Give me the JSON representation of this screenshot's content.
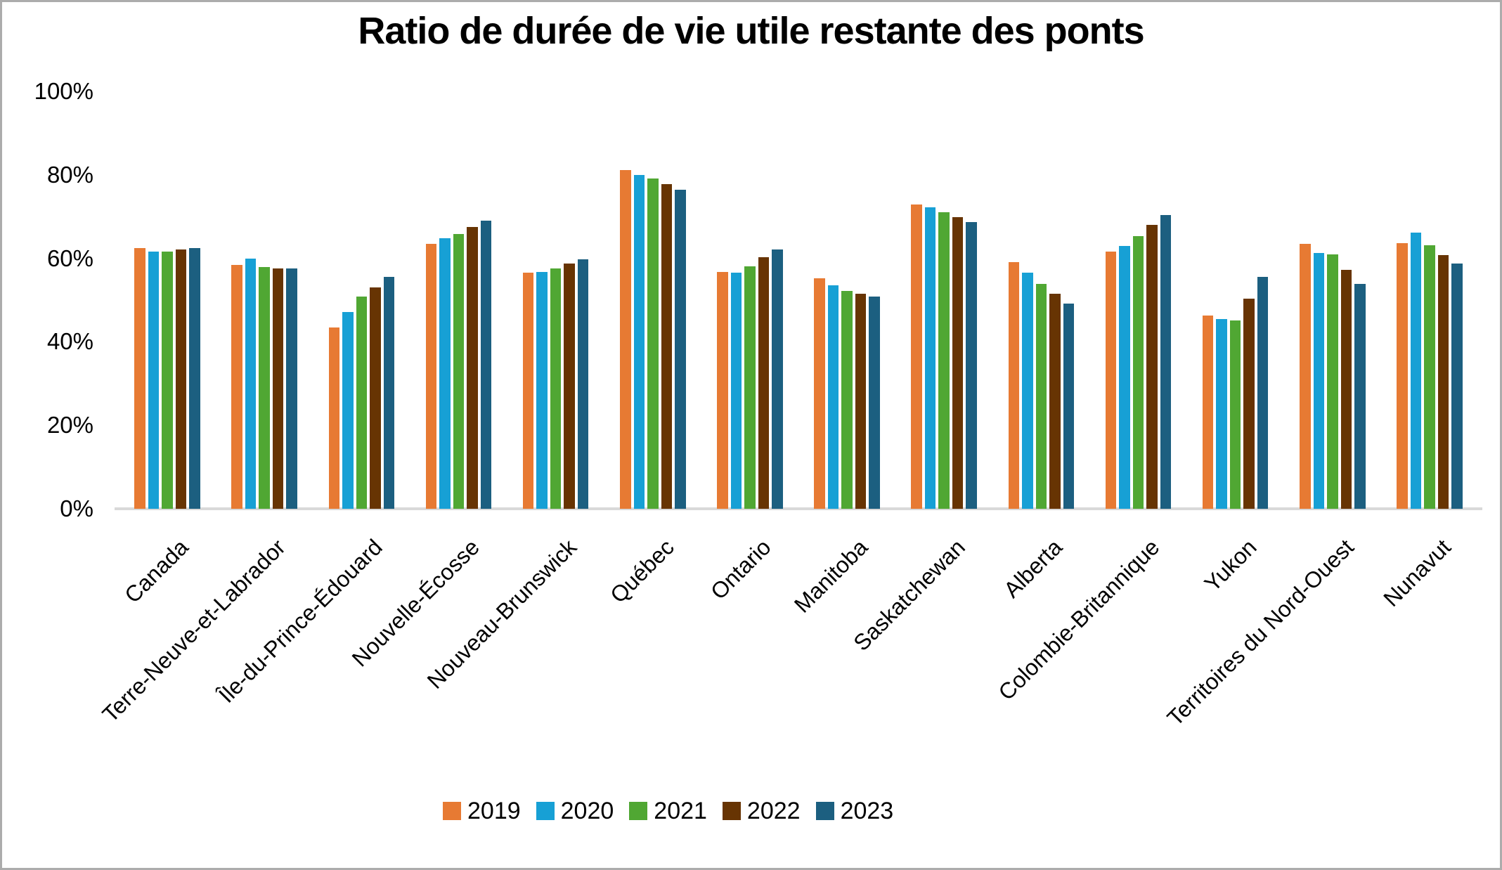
{
  "title": "Ratio de durée de vie utile restante des ponts",
  "colors": {
    "background": "#FFFFFF",
    "frame_border": "#ACACAC",
    "axis_line": "#D9D9D9",
    "text": "#000000"
  },
  "chart_data": {
    "type": "bar",
    "title": "Ratio de durée de vie utile restante des ponts",
    "xlabel": "",
    "ylabel": "",
    "grid": false,
    "legend_position": "bottom",
    "ylim": [
      0,
      100
    ],
    "y_ticks": [
      {
        "label": "100%",
        "value": 100
      },
      {
        "label": "80%",
        "value": 80
      },
      {
        "label": "60%",
        "value": 60
      },
      {
        "label": "40%",
        "value": 40
      },
      {
        "label": "20%",
        "value": 20
      },
      {
        "label": "0%",
        "value": 0
      }
    ],
    "categories": [
      "Canada",
      "Terre-Neuve-et-Labrador",
      "Île-du-Prince-Édouard",
      "Nouvelle-Écosse",
      "Nouveau-Brunswick",
      "Québec",
      "Ontario",
      "Manitoba",
      "Saskatchewan",
      "Alberta",
      "Colombie-Britannique",
      "Yukon",
      "Territoires du Nord-Ouest",
      "Nunavut"
    ],
    "series": [
      {
        "name": "2019",
        "color": "#E77A33",
        "values": [
          62.4,
          58.4,
          43.4,
          63.4,
          56.6,
          81.1,
          56.7,
          55.3,
          72.9,
          59.1,
          61.6,
          46.3,
          63.4,
          63.7
        ]
      },
      {
        "name": "2020",
        "color": "#17A0D5",
        "values": [
          61.6,
          59.9,
          47.1,
          64.8,
          56.7,
          80.0,
          56.5,
          53.5,
          72.3,
          56.5,
          63.0,
          45.5,
          61.2,
          66.1
        ]
      },
      {
        "name": "2021",
        "color": "#50A733",
        "values": [
          61.7,
          57.9,
          50.8,
          65.8,
          57.6,
          79.1,
          58.0,
          52.2,
          71.1,
          53.9,
          65.3,
          45.2,
          60.9,
          63.2
        ]
      },
      {
        "name": "2022",
        "color": "#673403",
        "values": [
          62.1,
          57.5,
          53.0,
          67.5,
          58.7,
          77.8,
          60.2,
          51.5,
          69.8,
          51.5,
          68.0,
          50.4,
          57.2,
          60.7
        ]
      },
      {
        "name": "2023",
        "color": "#1C5F80",
        "values": [
          62.4,
          57.5,
          55.6,
          69.0,
          59.7,
          76.5,
          62.1,
          50.9,
          68.7,
          49.1,
          70.3,
          55.6,
          53.9,
          58.8
        ]
      }
    ]
  }
}
